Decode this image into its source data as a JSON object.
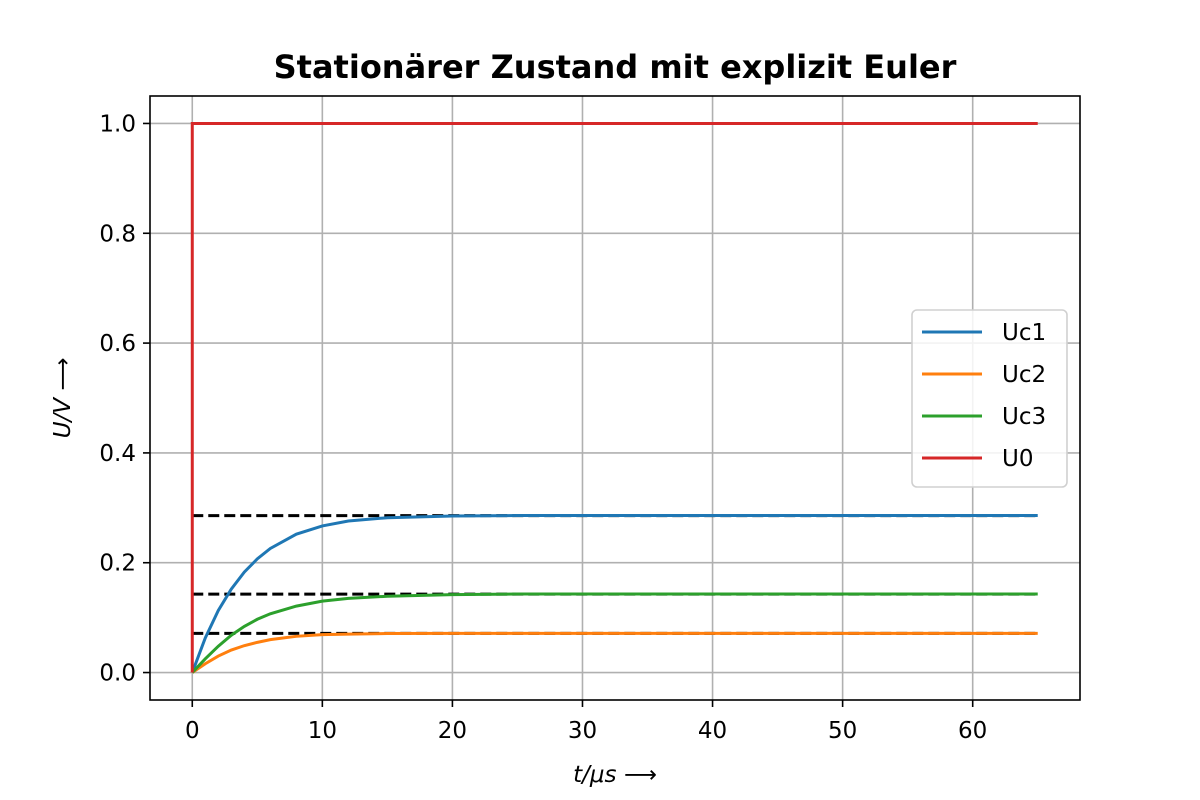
{
  "chart_data": {
    "type": "line",
    "title": "Stationärer Zustand mit explizit Euler",
    "xlabel": "t/μs ⟶",
    "ylabel": "U/V ⟶",
    "xlim": [
      -3.25,
      68.25
    ],
    "ylim": [
      -0.05,
      1.05
    ],
    "xticks": [
      0,
      10,
      20,
      30,
      40,
      50,
      60
    ],
    "yticks": [
      0.0,
      0.2,
      0.4,
      0.6,
      0.8,
      1.0
    ],
    "xtick_labels": [
      "0",
      "10",
      "20",
      "30",
      "40",
      "50",
      "60"
    ],
    "ytick_labels": [
      "0.0",
      "0.2",
      "0.4",
      "0.6",
      "0.8",
      "1.0"
    ],
    "grid": true,
    "legend_position": "center-right",
    "series": [
      {
        "name": "Uc1",
        "color": "#1f77b4",
        "x": [
          0,
          1,
          2,
          3,
          4,
          5,
          6,
          8,
          10,
          12,
          15,
          20,
          25,
          30,
          40,
          50,
          65
        ],
        "y": [
          0,
          0.063,
          0.113,
          0.152,
          0.183,
          0.207,
          0.226,
          0.252,
          0.267,
          0.276,
          0.282,
          0.285,
          0.286,
          0.286,
          0.286,
          0.286,
          0.286
        ]
      },
      {
        "name": "Uc2",
        "color": "#ff7f0e",
        "x": [
          0,
          1,
          2,
          3,
          4,
          5,
          6,
          8,
          10,
          12,
          15,
          20,
          25,
          30,
          40,
          50,
          65
        ],
        "y": [
          0,
          0.016,
          0.03,
          0.041,
          0.049,
          0.055,
          0.06,
          0.066,
          0.069,
          0.07,
          0.071,
          0.0714,
          0.0714,
          0.0714,
          0.0714,
          0.0714,
          0.0714
        ]
      },
      {
        "name": "Uc3",
        "color": "#2ca02c",
        "x": [
          0,
          1,
          2,
          3,
          4,
          5,
          6,
          8,
          10,
          12,
          15,
          20,
          25,
          30,
          40,
          50,
          65
        ],
        "y": [
          0,
          0.025,
          0.048,
          0.068,
          0.084,
          0.097,
          0.107,
          0.121,
          0.13,
          0.135,
          0.139,
          0.142,
          0.143,
          0.143,
          0.143,
          0.143,
          0.143
        ]
      },
      {
        "name": "U0",
        "color": "#d62728",
        "x": [
          0,
          0,
          65
        ],
        "y": [
          0,
          1.0,
          1.0
        ]
      }
    ],
    "reference_lines": [
      {
        "y": 0.2857,
        "x": [
          0,
          65
        ],
        "color": "#000000",
        "style": "dashed"
      },
      {
        "y": 0.1429,
        "x": [
          0,
          65
        ],
        "color": "#000000",
        "style": "dashed"
      },
      {
        "y": 0.0714,
        "x": [
          0,
          65
        ],
        "color": "#000000",
        "style": "dashed"
      }
    ]
  }
}
